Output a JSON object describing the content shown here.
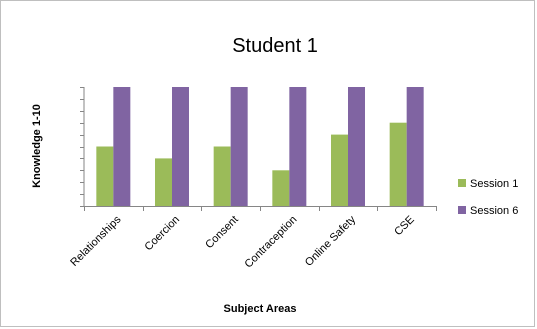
{
  "chart_data": {
    "type": "bar",
    "title": "Student 1",
    "xlabel": "Subject Areas",
    "ylabel": "Knowledge 1-10",
    "categories": [
      "Relationships",
      "Coercion",
      "Consent",
      "Contraception",
      "Online Safety",
      "CSE"
    ],
    "series": [
      {
        "name": "Session 1",
        "values": [
          5,
          4,
          5,
          3,
          6,
          7
        ],
        "color": "#9bbb59"
      },
      {
        "name": "Session 6",
        "values": [
          10,
          10,
          10,
          10,
          10,
          10
        ],
        "color": "#8064a2"
      }
    ],
    "ylim": [
      0,
      10
    ],
    "y_tick_step": 1,
    "y_tick_labels_shown": false,
    "grid": false,
    "legend_position": "right"
  }
}
